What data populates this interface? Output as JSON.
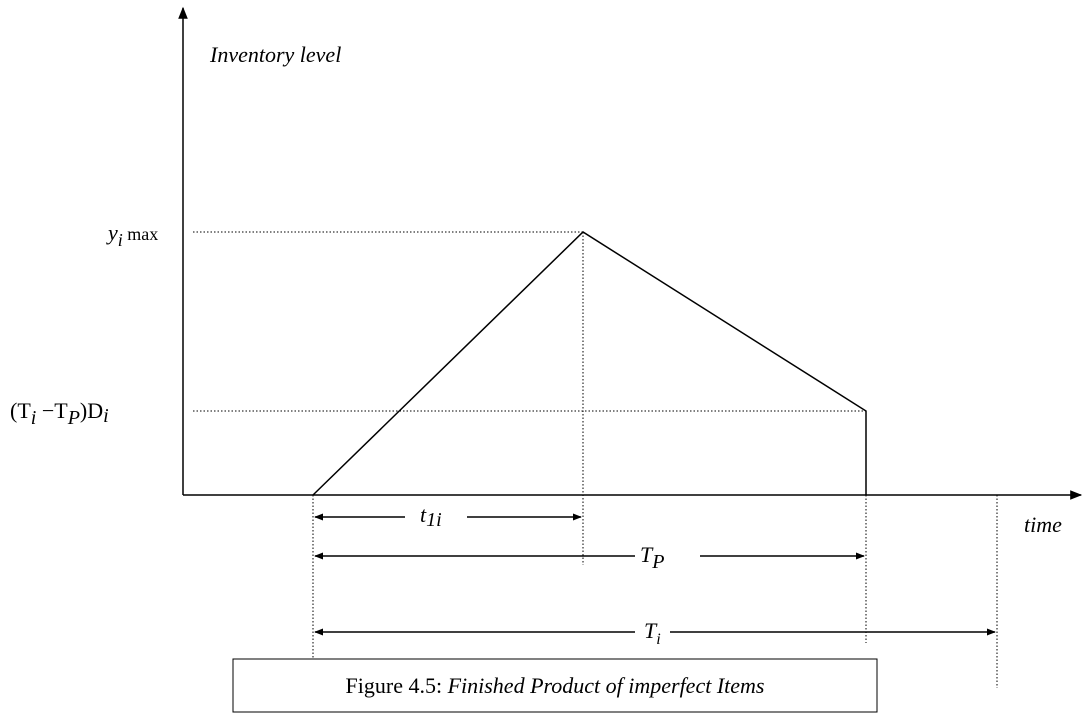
{
  "axes": {
    "y_label": "Inventory level",
    "x_label": "time"
  },
  "levels": {
    "ymax": [
      "y",
      "i",
      " max"
    ],
    "lower": [
      "(T",
      "i",
      " −T",
      "P",
      ")D",
      "i"
    ]
  },
  "intervals": {
    "t1i": [
      "t",
      "1i"
    ],
    "tp": [
      "T",
      "P"
    ],
    "ti": [
      "T",
      "i"
    ]
  },
  "caption": {
    "number": "Figure 4.5: ",
    "text": "Finished Product of imperfect Items"
  }
}
